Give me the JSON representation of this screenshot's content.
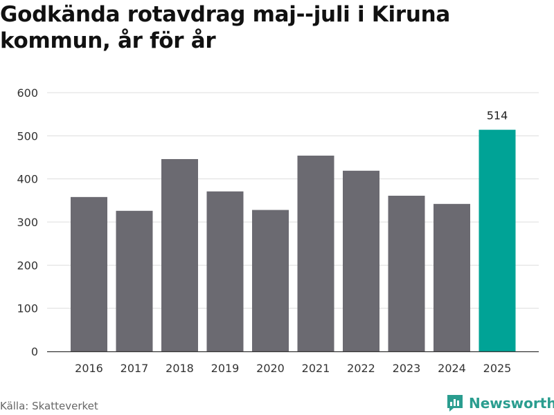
{
  "title": "Godkända rotavdrag maj--juli i Kiruna kommun, år för år",
  "source": "Källa: Skatteverket",
  "brand": {
    "name": "Newsworthy",
    "logo_icon": "newsworthy-logo-icon",
    "color": "#2a9d8f"
  },
  "colors": {
    "bar": "#6b6a71",
    "highlight": "#00a396",
    "grid": "#dddddd",
    "axis": "#333333"
  },
  "chart_data": {
    "type": "bar",
    "categories": [
      "2016",
      "2017",
      "2018",
      "2019",
      "2020",
      "2021",
      "2022",
      "2023",
      "2024",
      "2025"
    ],
    "values": [
      358,
      326,
      446,
      371,
      328,
      454,
      419,
      361,
      342,
      514
    ],
    "highlight_index": 9,
    "data_labels": [
      {
        "index": 9,
        "text": "514"
      }
    ],
    "ylim": [
      0,
      600
    ],
    "yticks": [
      0,
      100,
      200,
      300,
      400,
      500,
      600
    ],
    "grid": true,
    "xlabel": "",
    "ylabel": ""
  }
}
